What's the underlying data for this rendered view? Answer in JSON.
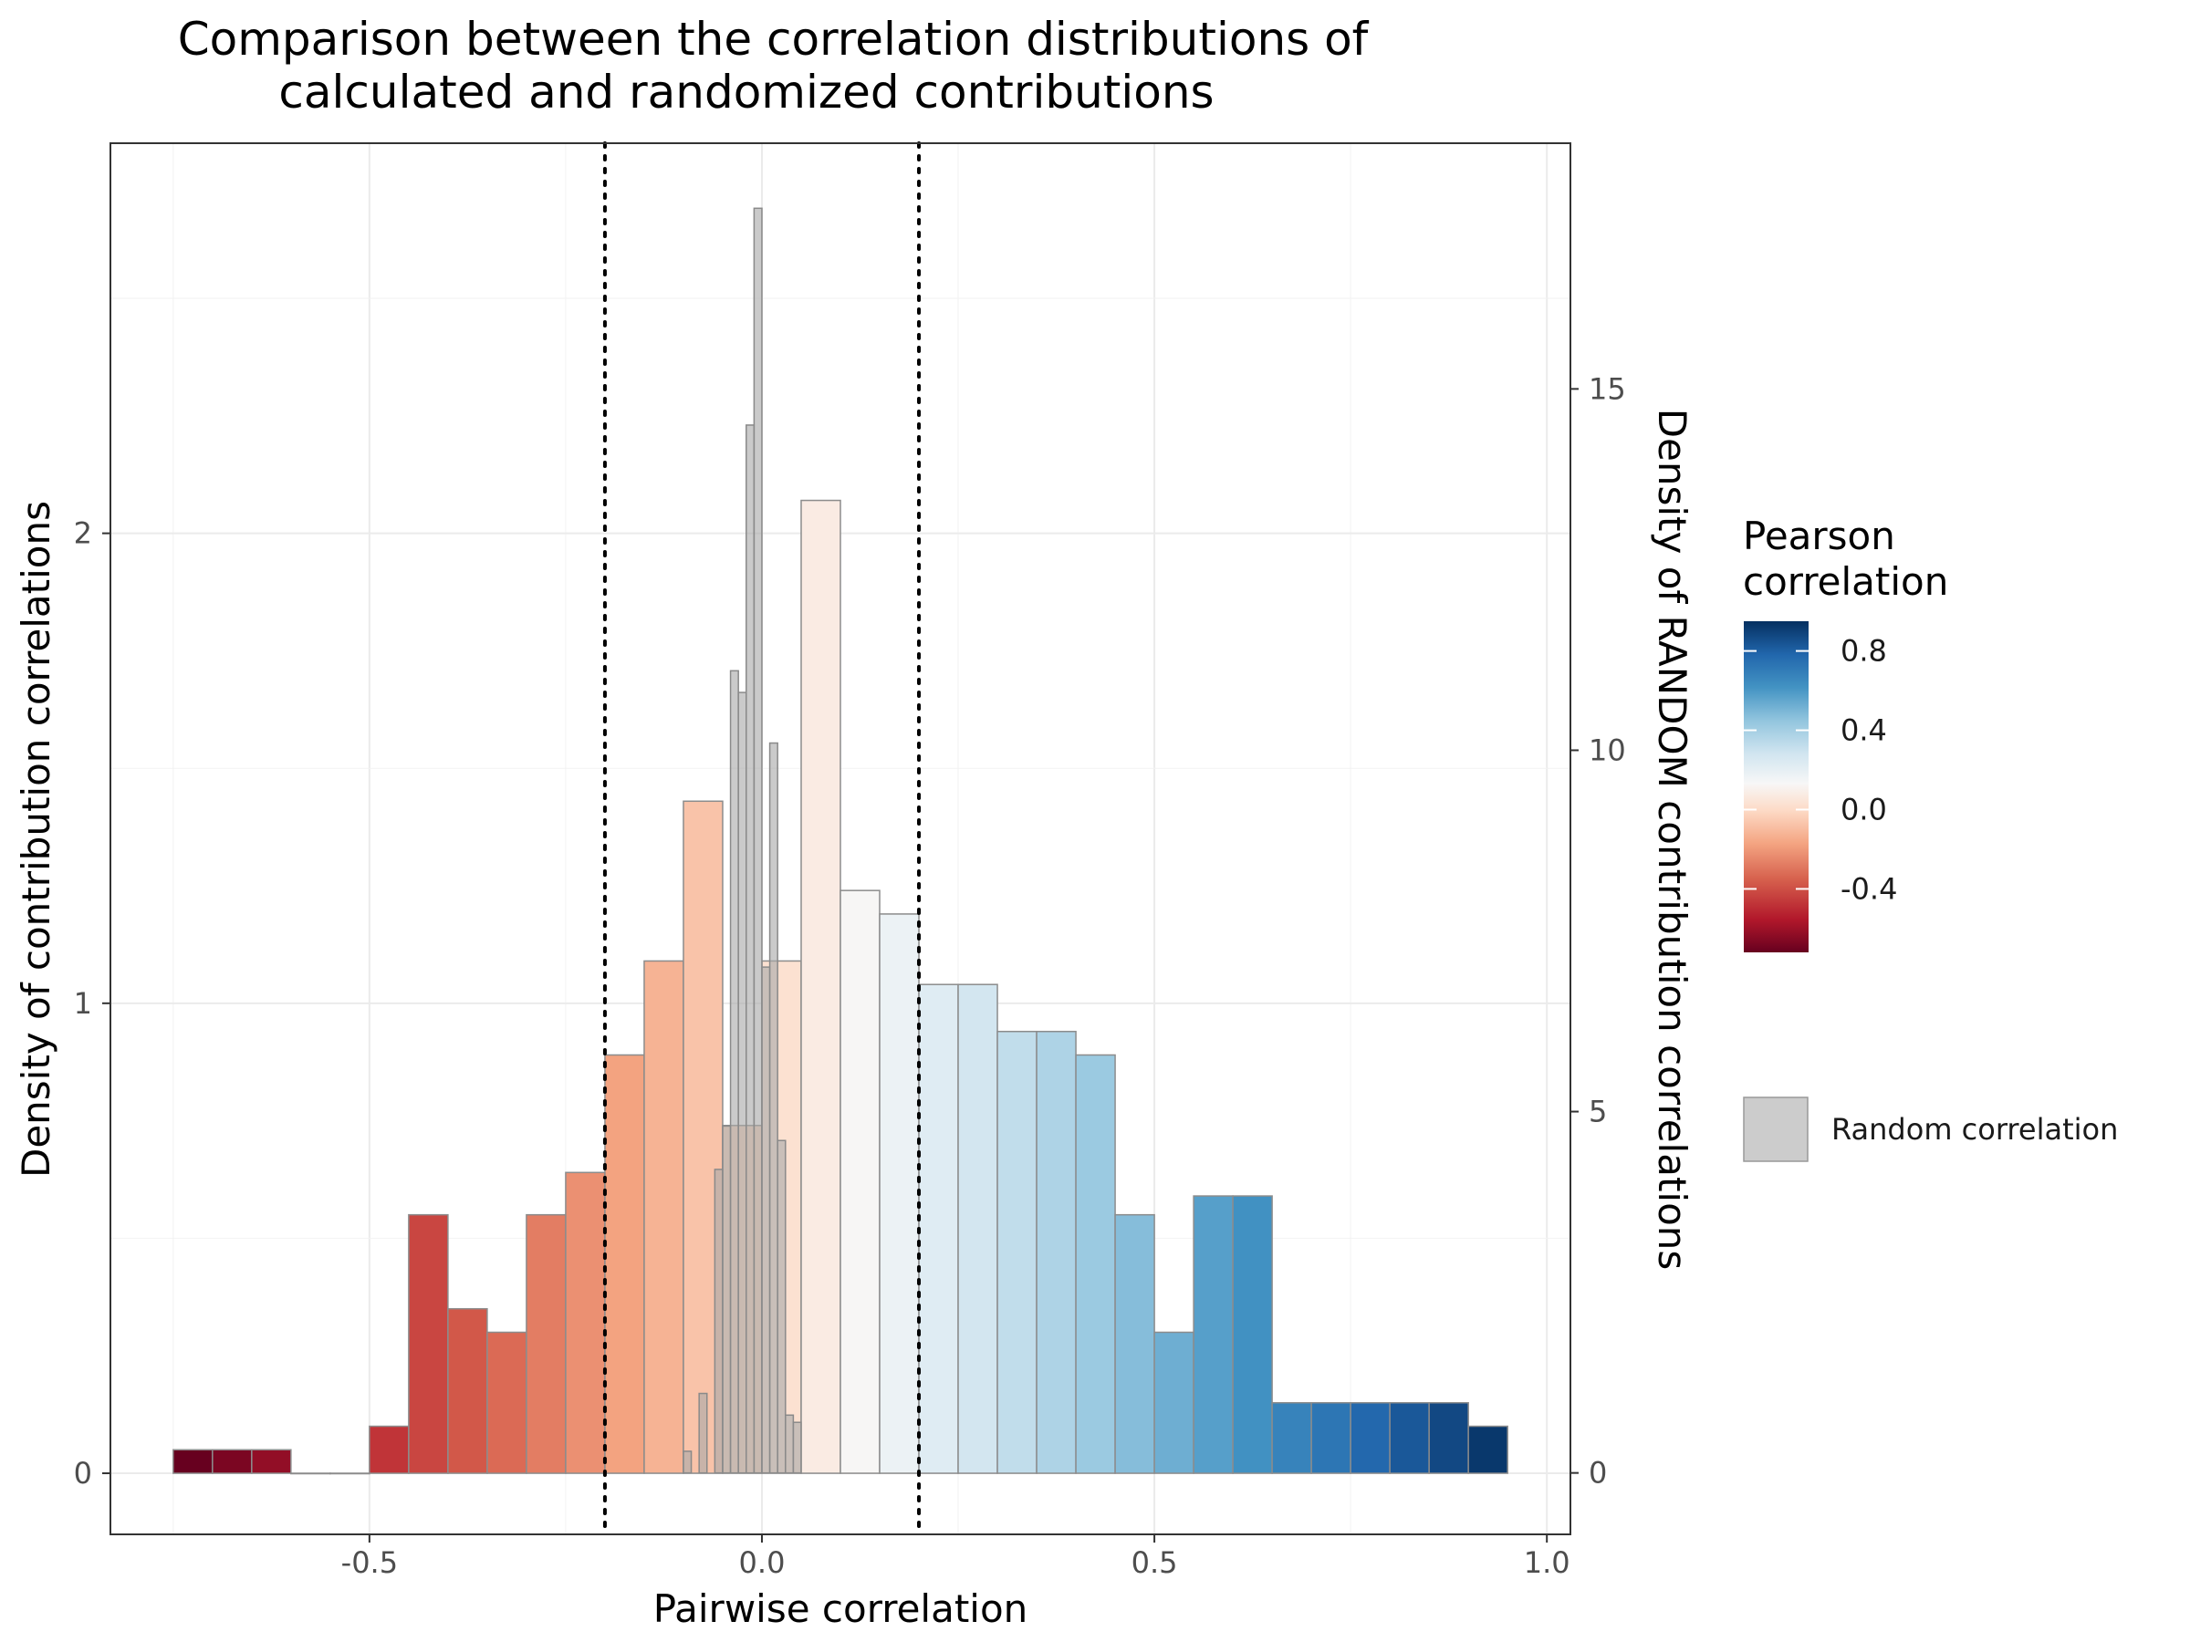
{
  "chart_data": {
    "type": "bar",
    "title": [
      "Comparison between the correlation distributions of",
      "calculated and randomized contributions"
    ],
    "xlabel": "Pairwise correlation",
    "ylabel_left": "Density of contribution correlations",
    "ylabel_right": "Density of RANDOM contribution correlations",
    "xlim": [
      -0.83,
      1.03
    ],
    "ylim_left": [
      -0.13,
      2.83
    ],
    "ylim_right": [
      -0.85,
      18.4
    ],
    "x_ticks": [
      -0.5,
      0.0,
      0.5,
      1.0
    ],
    "x_tick_labels": [
      "-0.5",
      "0.0",
      "0.5",
      "1.0"
    ],
    "y_left_ticks": [
      0,
      1,
      2
    ],
    "y_left_tick_labels": [
      "0",
      "1",
      "2"
    ],
    "y_right_ticks": [
      0,
      5,
      10,
      15
    ],
    "y_right_tick_labels": [
      "0",
      "5",
      "10",
      "15"
    ],
    "vlines": [
      -0.2,
      0.2
    ],
    "grid": true,
    "legend": {
      "position": "right",
      "colorbar_title": [
        "Pearson",
        "correlation"
      ],
      "colorbar_ticks": [
        0.8,
        0.4,
        0.0,
        -0.4
      ],
      "colorbar_tick_labels": [
        "0.8",
        "0.4",
        "0.0",
        "-0.4"
      ],
      "colorbar_range": [
        -0.72,
        0.95
      ],
      "random_label": "Random correlation"
    },
    "series": [
      {
        "name": "Pearson correlation",
        "bin_width": 0.05,
        "bins": [
          {
            "x0": -0.75,
            "x1": -0.7,
            "density": 0.05
          },
          {
            "x0": -0.7,
            "x1": -0.65,
            "density": 0.05
          },
          {
            "x0": -0.65,
            "x1": -0.6,
            "density": 0.05
          },
          {
            "x0": -0.6,
            "x1": -0.55,
            "density": 0.0
          },
          {
            "x0": -0.55,
            "x1": -0.5,
            "density": 0.0
          },
          {
            "x0": -0.5,
            "x1": -0.45,
            "density": 0.1
          },
          {
            "x0": -0.45,
            "x1": -0.4,
            "density": 0.55
          },
          {
            "x0": -0.4,
            "x1": -0.35,
            "density": 0.35
          },
          {
            "x0": -0.35,
            "x1": -0.3,
            "density": 0.3
          },
          {
            "x0": -0.3,
            "x1": -0.25,
            "density": 0.55
          },
          {
            "x0": -0.25,
            "x1": -0.2,
            "density": 0.64
          },
          {
            "x0": -0.2,
            "x1": -0.15,
            "density": 0.89
          },
          {
            "x0": -0.15,
            "x1": -0.1,
            "density": 1.09
          },
          {
            "x0": -0.1,
            "x1": -0.05,
            "density": 1.43
          },
          {
            "x0": -0.05,
            "x1": 0.0,
            "density": 0.74
          },
          {
            "x0": 0.0,
            "x1": 0.05,
            "density": 1.09
          },
          {
            "x0": 0.05,
            "x1": 0.1,
            "density": 2.07
          },
          {
            "x0": 0.1,
            "x1": 0.15,
            "density": 1.24
          },
          {
            "x0": 0.15,
            "x1": 0.2,
            "density": 1.19
          },
          {
            "x0": 0.2,
            "x1": 0.25,
            "density": 1.04
          },
          {
            "x0": 0.25,
            "x1": 0.3,
            "density": 1.04
          },
          {
            "x0": 0.3,
            "x1": 0.35,
            "density": 0.94
          },
          {
            "x0": 0.35,
            "x1": 0.4,
            "density": 0.94
          },
          {
            "x0": 0.4,
            "x1": 0.45,
            "density": 0.89
          },
          {
            "x0": 0.45,
            "x1": 0.5,
            "density": 0.55
          },
          {
            "x0": 0.5,
            "x1": 0.55,
            "density": 0.3
          },
          {
            "x0": 0.55,
            "x1": 0.6,
            "density": 0.59
          },
          {
            "x0": 0.6,
            "x1": 0.65,
            "density": 0.59
          },
          {
            "x0": 0.65,
            "x1": 0.7,
            "density": 0.15
          },
          {
            "x0": 0.7,
            "x1": 0.75,
            "density": 0.15
          },
          {
            "x0": 0.75,
            "x1": 0.8,
            "density": 0.15
          },
          {
            "x0": 0.8,
            "x1": 0.85,
            "density": 0.15
          },
          {
            "x0": 0.85,
            "x1": 0.9,
            "density": 0.15
          },
          {
            "x0": 0.9,
            "x1": 0.95,
            "density": 0.1
          }
        ]
      },
      {
        "name": "Random correlation",
        "bin_width": 0.01,
        "axis": "right",
        "bins": [
          {
            "x0": -0.1,
            "x1": -0.09,
            "density": 0.3
          },
          {
            "x0": -0.08,
            "x1": -0.07,
            "density": 1.1
          },
          {
            "x0": -0.06,
            "x1": -0.05,
            "density": 4.2
          },
          {
            "x0": -0.05,
            "x1": -0.04,
            "density": 4.8
          },
          {
            "x0": -0.04,
            "x1": -0.03,
            "density": 11.1
          },
          {
            "x0": -0.03,
            "x1": -0.02,
            "density": 10.8
          },
          {
            "x0": -0.02,
            "x1": -0.01,
            "density": 14.5
          },
          {
            "x0": -0.01,
            "x1": 0.0,
            "density": 17.5
          },
          {
            "x0": 0.0,
            "x1": 0.01,
            "density": 7.0
          },
          {
            "x0": 0.01,
            "x1": 0.02,
            "density": 10.1
          },
          {
            "x0": 0.02,
            "x1": 0.03,
            "density": 4.6
          },
          {
            "x0": 0.03,
            "x1": 0.04,
            "density": 0.8
          },
          {
            "x0": 0.04,
            "x1": 0.05,
            "density": 0.7
          }
        ]
      }
    ]
  }
}
